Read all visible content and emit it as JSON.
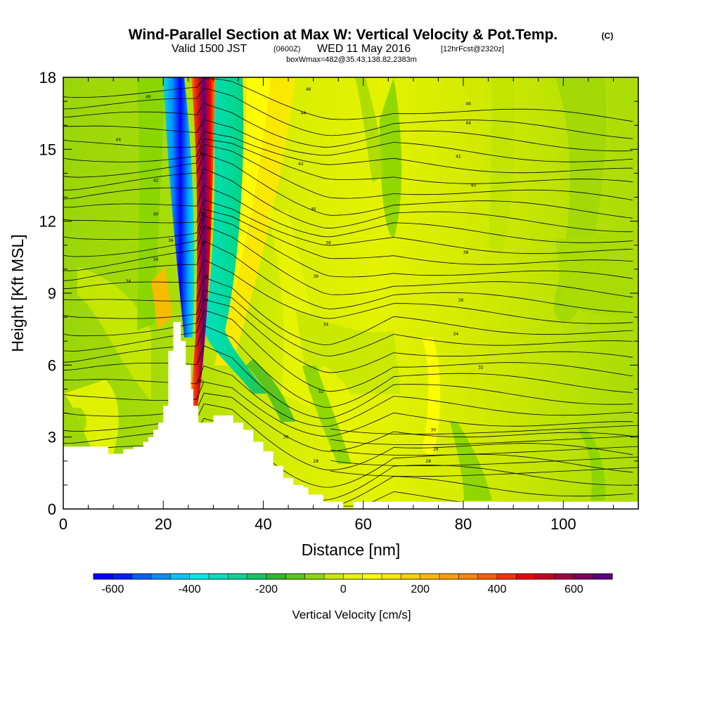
{
  "title": {
    "main": "Wind-Parallel Section at Max W: Vertical Velocity & Pot.Temp.",
    "copyright": "(C)",
    "valid_prefix": "Valid 1500 JST",
    "valid_utc": "(0600Z)",
    "valid_date": "WED 11 May 2016",
    "forecast": "[12hrFcst@2320z]",
    "boxw": "boxWmax=482@35.43,138.82,2383m"
  },
  "chart_data": {
    "type": "heatmap",
    "xlabel": "Distance [nm]",
    "ylabel": "Height [Kft MSL]",
    "xlim": [
      0,
      115
    ],
    "ylim": [
      0,
      18
    ],
    "x_ticks": [
      0,
      20,
      40,
      60,
      80,
      100
    ],
    "y_ticks": [
      0,
      3,
      6,
      9,
      12,
      15,
      18
    ],
    "grid": false,
    "colorbar": {
      "label": "Vertical Velocity [cm/s]",
      "min": -650,
      "max": 700,
      "step": 50,
      "ticks": [
        -600,
        -400,
        -200,
        0,
        200,
        400,
        600
      ],
      "colors": [
        "#0000ff",
        "#0020ff",
        "#0060ff",
        "#0090ff",
        "#00c8ff",
        "#00e8e8",
        "#00e0c0",
        "#00d890",
        "#10c860",
        "#30b830",
        "#58c818",
        "#90d800",
        "#c8e800",
        "#e8f400",
        "#ffff00",
        "#ffe800",
        "#ffd000",
        "#ffb800",
        "#ffa000",
        "#ff8800",
        "#ff6000",
        "#ff3000",
        "#ee0000",
        "#c80020",
        "#a00040",
        "#800060",
        "#5a0080"
      ]
    },
    "terrain_kft": [
      [
        0,
        2.6
      ],
      [
        9,
        2.6
      ],
      [
        9,
        2.3
      ],
      [
        12,
        2.3
      ],
      [
        12,
        2.5
      ],
      [
        14,
        2.5
      ],
      [
        14,
        2.6
      ],
      [
        16,
        2.6
      ],
      [
        16,
        2.8
      ],
      [
        17,
        2.8
      ],
      [
        17,
        3.0
      ],
      [
        18,
        3.0
      ],
      [
        18,
        3.3
      ],
      [
        19,
        3.3
      ],
      [
        19,
        3.6
      ],
      [
        20,
        3.6
      ],
      [
        20,
        4.3
      ],
      [
        21,
        4.3
      ],
      [
        21,
        6.6
      ],
      [
        22,
        6.6
      ],
      [
        22,
        7.8
      ],
      [
        23.5,
        7.8
      ],
      [
        23.5,
        7.0
      ],
      [
        24.5,
        7.0
      ],
      [
        24.5,
        6.0
      ],
      [
        25.5,
        6.0
      ],
      [
        25.5,
        5.0
      ],
      [
        26,
        5.0
      ],
      [
        26,
        4.3
      ],
      [
        27,
        4.3
      ],
      [
        27,
        3.6
      ],
      [
        30,
        3.6
      ],
      [
        30,
        3.9
      ],
      [
        34,
        3.9
      ],
      [
        34,
        3.6
      ],
      [
        36,
        3.6
      ],
      [
        36,
        3.3
      ],
      [
        38,
        3.3
      ],
      [
        38,
        2.8
      ],
      [
        40,
        2.8
      ],
      [
        40,
        2.4
      ],
      [
        42,
        2.4
      ],
      [
        42,
        1.8
      ],
      [
        44,
        1.8
      ],
      [
        44,
        1.3
      ],
      [
        46,
        1.3
      ],
      [
        46,
        1.0
      ],
      [
        48,
        1.0
      ],
      [
        48,
        0.9
      ],
      [
        49,
        0.9
      ],
      [
        49,
        0.6
      ],
      [
        52,
        0.6
      ],
      [
        52,
        0.3
      ],
      [
        56,
        0.3
      ],
      [
        56,
        0.0
      ],
      [
        58,
        0.0
      ],
      [
        58,
        0.3
      ],
      [
        115,
        0.3
      ]
    ],
    "theta_contour_labels": [
      {
        "x": 17,
        "y": 17.2,
        "text": "46"
      },
      {
        "x": 11,
        "y": 15.4,
        "text": "44"
      },
      {
        "x": 18.5,
        "y": 13.7,
        "text": "42"
      },
      {
        "x": 18.5,
        "y": 12.3,
        "text": "40"
      },
      {
        "x": 18.5,
        "y": 10.4,
        "text": "36"
      },
      {
        "x": 13,
        "y": 9.5,
        "text": "34"
      },
      {
        "x": 21.5,
        "y": 11.2,
        "text": "36"
      },
      {
        "x": 28,
        "y": 14.8,
        "text": "42"
      },
      {
        "x": 28,
        "y": 12.3,
        "text": "42"
      },
      {
        "x": 29,
        "y": 11.7,
        "text": "38"
      },
      {
        "x": 28,
        "y": 11.1,
        "text": "40"
      },
      {
        "x": 28.5,
        "y": 9.7,
        "text": "36"
      },
      {
        "x": 28.5,
        "y": 8.7,
        "text": "34"
      },
      {
        "x": 27.5,
        "y": 5.3,
        "text": "30"
      },
      {
        "x": 49,
        "y": 17.5,
        "text": "46"
      },
      {
        "x": 48,
        "y": 16.5,
        "text": "44"
      },
      {
        "x": 47.5,
        "y": 14.4,
        "text": "42"
      },
      {
        "x": 50,
        "y": 12.5,
        "text": "40"
      },
      {
        "x": 53,
        "y": 11.1,
        "text": "38"
      },
      {
        "x": 50.5,
        "y": 9.7,
        "text": "36"
      },
      {
        "x": 52.5,
        "y": 7.7,
        "text": "34"
      },
      {
        "x": 51.5,
        "y": 4.9,
        "text": "32"
      },
      {
        "x": 44.5,
        "y": 3.0,
        "text": "30"
      },
      {
        "x": 50.5,
        "y": 2.0,
        "text": "28"
      },
      {
        "x": 81,
        "y": 16.9,
        "text": "46"
      },
      {
        "x": 81,
        "y": 16.1,
        "text": "44"
      },
      {
        "x": 79,
        "y": 14.7,
        "text": "42"
      },
      {
        "x": 82,
        "y": 13.5,
        "text": "40"
      },
      {
        "x": 80.5,
        "y": 10.7,
        "text": "38"
      },
      {
        "x": 79.5,
        "y": 8.7,
        "text": "36"
      },
      {
        "x": 78.5,
        "y": 7.3,
        "text": "34"
      },
      {
        "x": 83.5,
        "y": 5.9,
        "text": "32"
      },
      {
        "x": 74,
        "y": 3.3,
        "text": "30"
      },
      {
        "x": 74.5,
        "y": 2.5,
        "text": "28"
      },
      {
        "x": 73,
        "y": 2.0,
        "text": "28"
      }
    ]
  }
}
